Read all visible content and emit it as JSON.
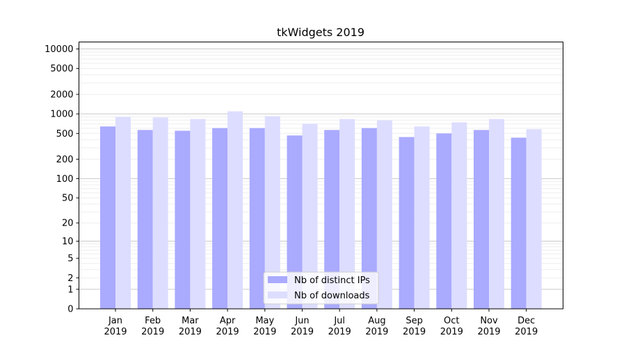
{
  "chart_data": {
    "type": "bar",
    "title": "tkWidgets 2019",
    "xlabel": "",
    "ylabel": "",
    "y_scale": "log10(1+y)",
    "ylim": [
      0,
      12800
    ],
    "grid": true,
    "legend_placement": "bottom-center",
    "categories": [
      [
        "Jan",
        "2019"
      ],
      [
        "Feb",
        "2019"
      ],
      [
        "Mar",
        "2019"
      ],
      [
        "Apr",
        "2019"
      ],
      [
        "May",
        "2019"
      ],
      [
        "Jun",
        "2019"
      ],
      [
        "Jul",
        "2019"
      ],
      [
        "Aug",
        "2019"
      ],
      [
        "Sep",
        "2019"
      ],
      [
        "Oct",
        "2019"
      ],
      [
        "Nov",
        "2019"
      ],
      [
        "Dec",
        "2019"
      ]
    ],
    "y_ticks": [
      0,
      1,
      2,
      5,
      10,
      20,
      50,
      100,
      200,
      500,
      1000,
      2000,
      5000,
      10000
    ],
    "series": [
      {
        "name": "Nb of distinct IPs",
        "color": "#aaaaff",
        "values": [
          640,
          565,
          550,
          605,
          605,
          465,
          565,
          605,
          440,
          500,
          565,
          430
        ]
      },
      {
        "name": "Nb of downloads",
        "color": "#ddddff",
        "values": [
          900,
          880,
          835,
          1095,
          920,
          705,
          835,
          795,
          640,
          740,
          835,
          580
        ]
      }
    ]
  }
}
